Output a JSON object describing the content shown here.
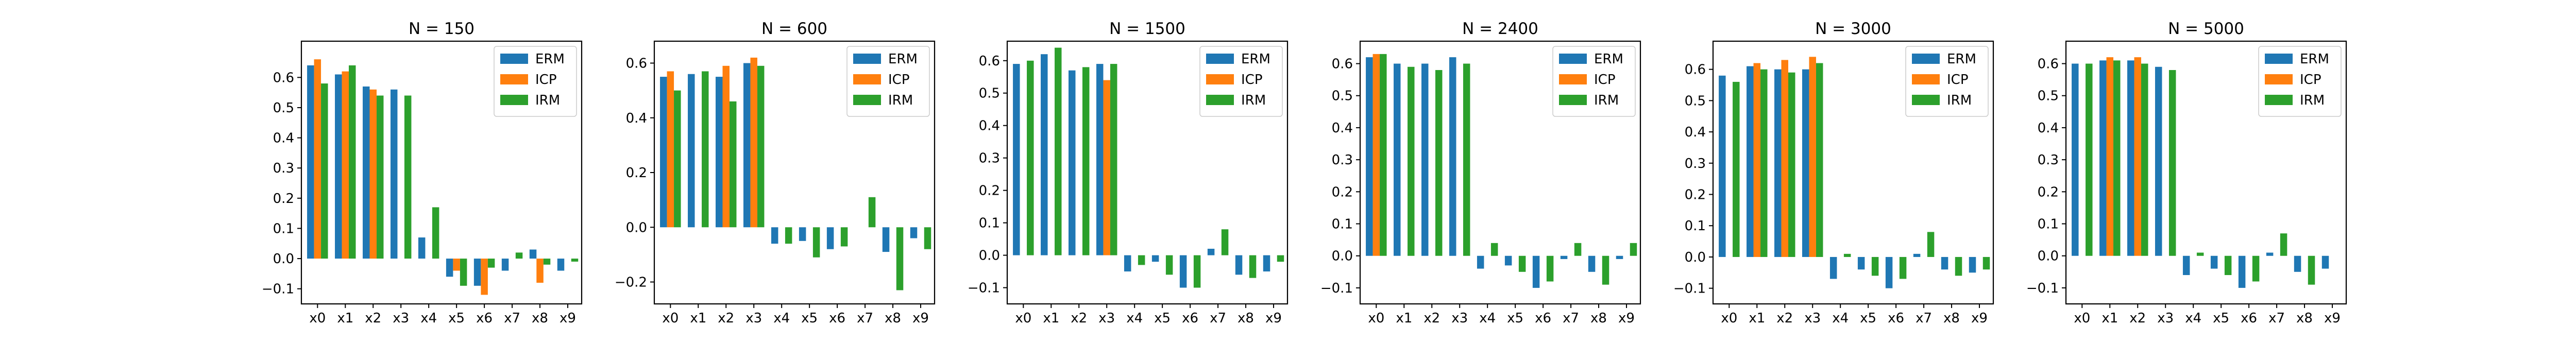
{
  "chart_data": [
    {
      "type": "bar",
      "title": "N = 150",
      "categories": [
        "x0",
        "x1",
        "x2",
        "x3",
        "x4",
        "x5",
        "x6",
        "x7",
        "x8",
        "x9"
      ],
      "ylim": [
        -0.15,
        0.72
      ],
      "yticks": [
        -0.1,
        0.0,
        0.1,
        0.2,
        0.3,
        0.4,
        0.5,
        0.6
      ],
      "ytick_labels": [
        "−0.1",
        "0.0",
        "0.1",
        "0.2",
        "0.3",
        "0.4",
        "0.5",
        "0.6"
      ],
      "legend": "top-right",
      "series": [
        {
          "name": "ERM",
          "color": "#1f77b4",
          "values": [
            0.64,
            0.61,
            0.57,
            0.56,
            0.07,
            -0.06,
            -0.09,
            -0.04,
            0.03,
            -0.04
          ]
        },
        {
          "name": "ICP",
          "color": "#ff7f0e",
          "values": [
            0.66,
            0.62,
            0.56,
            0.0,
            0.0,
            -0.04,
            -0.12,
            0.0,
            -0.08,
            0.0
          ]
        },
        {
          "name": "IRM",
          "color": "#2ca02c",
          "values": [
            0.58,
            0.64,
            0.54,
            0.54,
            0.17,
            -0.09,
            -0.03,
            0.02,
            -0.02,
            -0.01
          ]
        }
      ]
    },
    {
      "type": "bar",
      "title": "N = 600",
      "categories": [
        "x0",
        "x1",
        "x2",
        "x3",
        "x4",
        "x5",
        "x6",
        "x7",
        "x8",
        "x9"
      ],
      "ylim": [
        -0.28,
        0.68
      ],
      "yticks": [
        -0.2,
        0.0,
        0.2,
        0.4,
        0.6
      ],
      "ytick_labels": [
        "−0.2",
        "0.0",
        "0.2",
        "0.4",
        "0.6"
      ],
      "legend": "top-right",
      "series": [
        {
          "name": "ERM",
          "color": "#1f77b4",
          "values": [
            0.55,
            0.56,
            0.55,
            0.6,
            -0.06,
            -0.05,
            -0.08,
            0.0,
            -0.09,
            -0.04
          ]
        },
        {
          "name": "ICP",
          "color": "#ff7f0e",
          "values": [
            0.57,
            0.0,
            0.59,
            0.62,
            0.0,
            0.0,
            0.0,
            0.0,
            0.0,
            0.0
          ]
        },
        {
          "name": "IRM",
          "color": "#2ca02c",
          "values": [
            0.5,
            0.57,
            0.46,
            0.59,
            -0.06,
            -0.11,
            -0.07,
            0.11,
            -0.23,
            -0.08
          ]
        }
      ]
    },
    {
      "type": "bar",
      "title": "N = 1500",
      "categories": [
        "x0",
        "x1",
        "x2",
        "x3",
        "x4",
        "x5",
        "x6",
        "x7",
        "x8",
        "x9"
      ],
      "ylim": [
        -0.15,
        0.66
      ],
      "yticks": [
        -0.1,
        0.0,
        0.1,
        0.2,
        0.3,
        0.4,
        0.5,
        0.6
      ],
      "ytick_labels": [
        "−0.1",
        "0.0",
        "0.1",
        "0.2",
        "0.3",
        "0.4",
        "0.5",
        "0.6"
      ],
      "legend": "top-right",
      "series": [
        {
          "name": "ERM",
          "color": "#1f77b4",
          "values": [
            0.59,
            0.62,
            0.57,
            0.59,
            -0.05,
            -0.02,
            -0.1,
            0.02,
            -0.06,
            -0.05
          ]
        },
        {
          "name": "ICP",
          "color": "#ff7f0e",
          "values": [
            0.0,
            0.0,
            0.0,
            0.54,
            0.0,
            0.0,
            0.0,
            0.0,
            0.0,
            0.0
          ]
        },
        {
          "name": "IRM",
          "color": "#2ca02c",
          "values": [
            0.6,
            0.64,
            0.58,
            0.59,
            -0.03,
            -0.06,
            -0.1,
            0.08,
            -0.07,
            -0.02
          ]
        }
      ]
    },
    {
      "type": "bar",
      "title": "N = 2400",
      "categories": [
        "x0",
        "x1",
        "x2",
        "x3",
        "x4",
        "x5",
        "x6",
        "x7",
        "x8",
        "x9"
      ],
      "ylim": [
        -0.15,
        0.67
      ],
      "yticks": [
        -0.1,
        0.0,
        0.1,
        0.2,
        0.3,
        0.4,
        0.5,
        0.6
      ],
      "ytick_labels": [
        "−0.1",
        "0.0",
        "0.1",
        "0.2",
        "0.3",
        "0.4",
        "0.5",
        "0.6"
      ],
      "legend": "top-right",
      "series": [
        {
          "name": "ERM",
          "color": "#1f77b4",
          "values": [
            0.62,
            0.6,
            0.6,
            0.62,
            -0.04,
            -0.03,
            -0.1,
            -0.01,
            -0.05,
            -0.01
          ]
        },
        {
          "name": "ICP",
          "color": "#ff7f0e",
          "values": [
            0.63,
            0.0,
            0.0,
            0.0,
            0.0,
            0.0,
            0.0,
            0.0,
            0.0,
            0.0
          ]
        },
        {
          "name": "IRM",
          "color": "#2ca02c",
          "values": [
            0.63,
            0.59,
            0.58,
            0.6,
            0.04,
            -0.05,
            -0.08,
            0.04,
            -0.09,
            0.04
          ]
        }
      ]
    },
    {
      "type": "bar",
      "title": "N = 3000",
      "categories": [
        "x0",
        "x1",
        "x2",
        "x3",
        "x4",
        "x5",
        "x6",
        "x7",
        "x8",
        "x9"
      ],
      "ylim": [
        -0.15,
        0.69
      ],
      "yticks": [
        -0.1,
        0.0,
        0.1,
        0.2,
        0.3,
        0.4,
        0.5,
        0.6
      ],
      "ytick_labels": [
        "−0.1",
        "0.0",
        "0.1",
        "0.2",
        "0.3",
        "0.4",
        "0.5",
        "0.6"
      ],
      "legend": "top-right",
      "series": [
        {
          "name": "ERM",
          "color": "#1f77b4",
          "values": [
            0.58,
            0.61,
            0.6,
            0.6,
            -0.07,
            -0.04,
            -0.1,
            0.01,
            -0.04,
            -0.05
          ]
        },
        {
          "name": "ICP",
          "color": "#ff7f0e",
          "values": [
            0.0,
            0.62,
            0.63,
            0.64,
            0.0,
            0.0,
            0.0,
            0.0,
            0.0,
            0.0
          ]
        },
        {
          "name": "IRM",
          "color": "#2ca02c",
          "values": [
            0.56,
            0.6,
            0.59,
            0.62,
            0.01,
            -0.06,
            -0.07,
            0.08,
            -0.06,
            -0.04
          ]
        }
      ]
    },
    {
      "type": "bar",
      "title": "N = 5000",
      "categories": [
        "x0",
        "x1",
        "x2",
        "x3",
        "x4",
        "x5",
        "x6",
        "x7",
        "x8",
        "x9"
      ],
      "ylim": [
        -0.15,
        0.67
      ],
      "yticks": [
        -0.1,
        0.0,
        0.1,
        0.2,
        0.3,
        0.4,
        0.5,
        0.6
      ],
      "ytick_labels": [
        "−0.1",
        "0.0",
        "0.1",
        "0.2",
        "0.3",
        "0.4",
        "0.5",
        "0.6"
      ],
      "legend": "top-right",
      "series": [
        {
          "name": "ERM",
          "color": "#1f77b4",
          "values": [
            0.6,
            0.61,
            0.61,
            0.59,
            -0.06,
            -0.04,
            -0.1,
            0.01,
            -0.05,
            -0.04
          ]
        },
        {
          "name": "ICP",
          "color": "#ff7f0e",
          "values": [
            0.0,
            0.62,
            0.62,
            0.0,
            0.0,
            0.0,
            0.0,
            0.0,
            0.0,
            0.0
          ]
        },
        {
          "name": "IRM",
          "color": "#2ca02c",
          "values": [
            0.6,
            0.61,
            0.6,
            0.58,
            0.01,
            -0.06,
            -0.08,
            0.07,
            -0.09,
            0.0
          ]
        }
      ]
    }
  ]
}
